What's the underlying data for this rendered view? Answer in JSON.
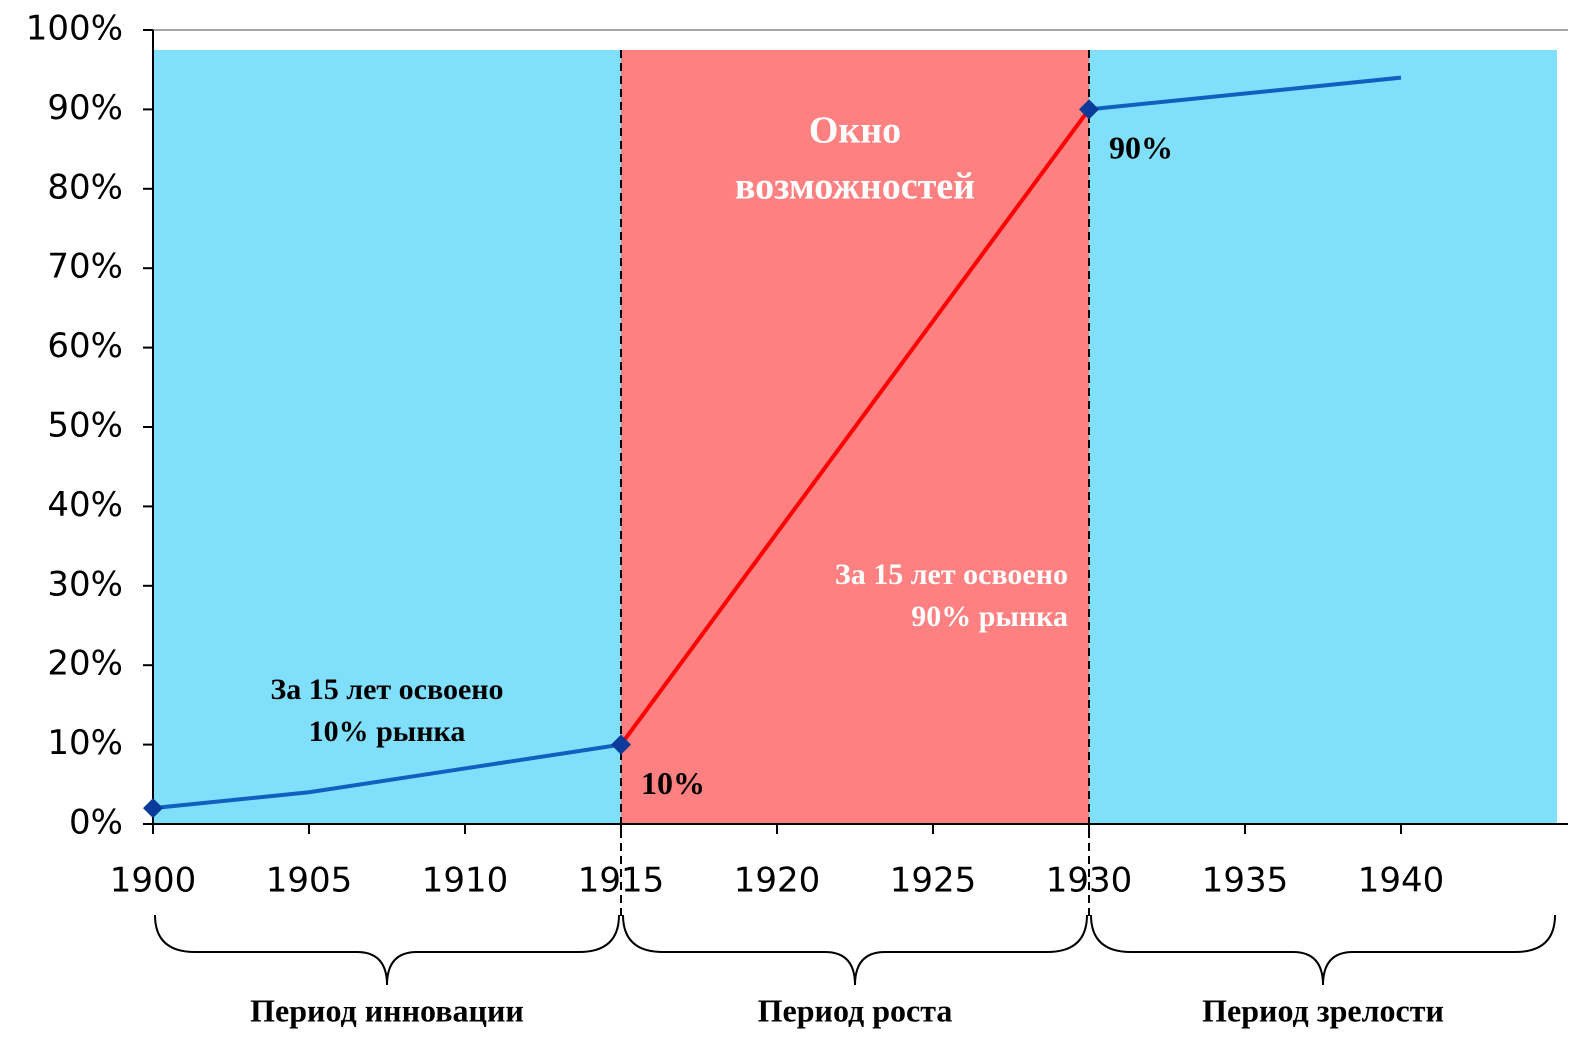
{
  "chart_data": {
    "type": "line",
    "xlim": [
      1900,
      1945
    ],
    "xticks": [
      1900,
      1905,
      1910,
      1915,
      1920,
      1925,
      1930,
      1935,
      1940
    ],
    "ylim": [
      0,
      100
    ],
    "yticks": [
      {
        "value": 0,
        "label": "0%"
      },
      {
        "value": 10,
        "label": "10%"
      },
      {
        "value": 20,
        "label": "20%"
      },
      {
        "value": 30,
        "label": "30%"
      },
      {
        "value": 40,
        "label": "40%"
      },
      {
        "value": 50,
        "label": "50%"
      },
      {
        "value": 60,
        "label": "60%"
      },
      {
        "value": 70,
        "label": "70%"
      },
      {
        "value": 80,
        "label": "80%"
      },
      {
        "value": 90,
        "label": "90%"
      },
      {
        "value": 100,
        "label": "100%"
      }
    ],
    "series": [
      {
        "color": "#1060c0",
        "x": [
          1900,
          1905,
          1910,
          1915
        ],
        "values": [
          2,
          4,
          7,
          10
        ]
      },
      {
        "color": "#ff0000",
        "x": [
          1915,
          1930
        ],
        "values": [
          10,
          90
        ]
      },
      {
        "color": "#1060c0",
        "x": [
          1930,
          1940
        ],
        "values": [
          90,
          94
        ]
      }
    ],
    "markers": {
      "color": "#0a3a9a",
      "x": [
        1900,
        1915,
        1930
      ],
      "values": [
        2,
        10,
        90
      ],
      "value_labels": [
        null,
        "10%",
        "90%"
      ]
    },
    "periods": [
      {
        "start": 1900,
        "end": 1915,
        "color": "#80e0fc",
        "label": "Период инновации"
      },
      {
        "start": 1915,
        "end": 1930,
        "color": "#ff8080",
        "label": "Период роста"
      },
      {
        "start": 1930,
        "end": 1945,
        "color": "#80e0fc",
        "label": "Период зрелости"
      }
    ],
    "annotations": [
      {
        "lines": [
          "Окно",
          "возможностей"
        ]
      },
      {
        "lines": [
          "За 15 лет освоено",
          "90% рынка"
        ]
      },
      {
        "lines": [
          "За 15 лет освоено",
          "10% рынка"
        ]
      }
    ]
  }
}
